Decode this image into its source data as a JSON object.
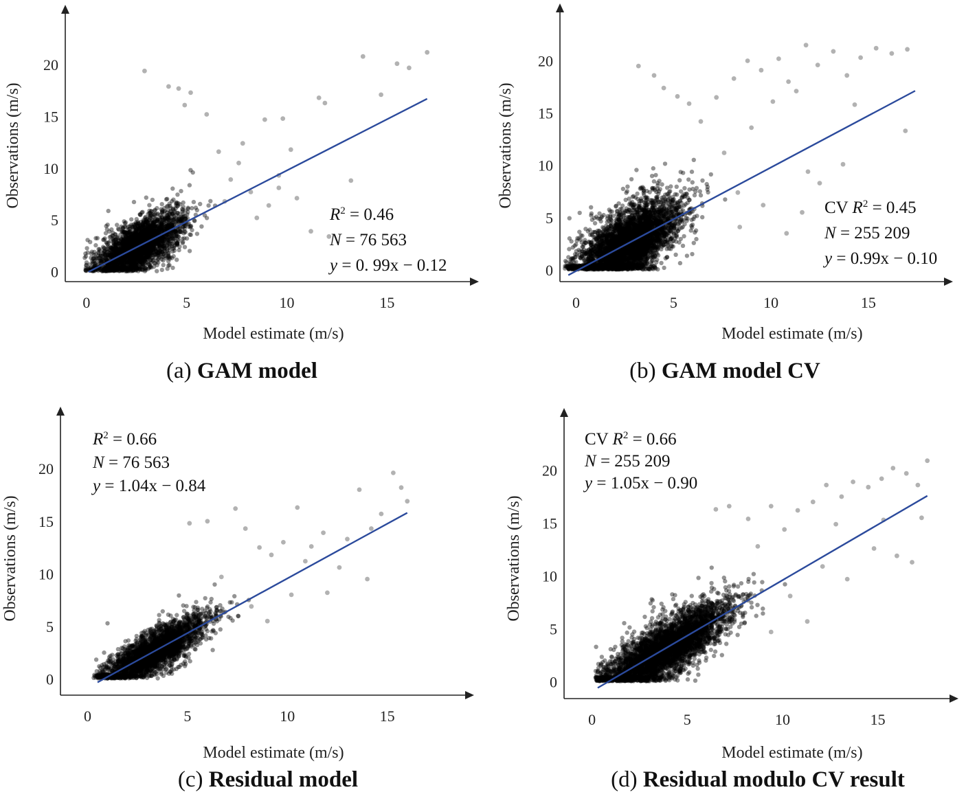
{
  "chart_data": [
    {
      "type": "scatter",
      "caption_letter": "(a)",
      "caption_title": "GAM model",
      "xlabel": "Model estimate (m/s)",
      "ylabel": "Observations (m/s)",
      "xlim": [
        -0.2,
        19
      ],
      "ylim": [
        -0.3,
        24
      ],
      "xticks": [
        0,
        5,
        10,
        15
      ],
      "yticks": [
        0,
        5,
        10,
        15,
        20
      ],
      "stats": {
        "r2_prefix": "",
        "r2_value": "= 0.46",
        "n_value": "= 76 563",
        "eq_value": "= 0. 99x − 0.12"
      },
      "fit": {
        "slope": 0.99,
        "intercept": -0.12,
        "x": [
          0.1,
          17
        ]
      },
      "cloud": {
        "cx": 2.6,
        "cy": 2.4,
        "sx": 1.1,
        "sy": 1.8,
        "n": 2600,
        "seed": 11
      },
      "outliers": [
        [
          2.9,
          19.4
        ],
        [
          4.1,
          17.9
        ],
        [
          4.6,
          17.7
        ],
        [
          5.2,
          17.3
        ],
        [
          4.9,
          16.1
        ],
        [
          6.0,
          15.2
        ],
        [
          6.6,
          11.6
        ],
        [
          7.8,
          12.4
        ],
        [
          8.9,
          14.7
        ],
        [
          9.8,
          14.8
        ],
        [
          9.6,
          9.3
        ],
        [
          10.2,
          11.8
        ],
        [
          11.6,
          16.8
        ],
        [
          11.9,
          16.3
        ],
        [
          11.2,
          3.9
        ],
        [
          12.1,
          3.4
        ],
        [
          13.2,
          8.8
        ],
        [
          13.8,
          20.8
        ],
        [
          14.7,
          17.1
        ],
        [
          15.5,
          20.1
        ],
        [
          16.1,
          19.7
        ],
        [
          17.0,
          21.2
        ],
        [
          7.2,
          8.9
        ],
        [
          8.2,
          7.7
        ],
        [
          9.1,
          6.4
        ],
        [
          10.5,
          7.1
        ],
        [
          7.6,
          10.5
        ],
        [
          8.5,
          5.2
        ],
        [
          6.9,
          6.8
        ],
        [
          9.6,
          8.1
        ]
      ]
    },
    {
      "type": "scatter",
      "caption_letter": "(b)",
      "caption_title": "GAM model CV",
      "xlabel": "Model estimate (m/s)",
      "ylabel": "Observations (m/s)",
      "xlim": [
        -0.9,
        19.2
      ],
      "ylim": [
        -0.2,
        24.5
      ],
      "xticks": [
        0,
        5,
        10,
        15
      ],
      "yticks": [
        0,
        5,
        10,
        15,
        20
      ],
      "stats": {
        "r2_prefix": "CV ",
        "r2_value": "= 0.45",
        "n_value": "= 255 209",
        "eq_value": "= 0.99x − 0.10"
      },
      "fit": {
        "slope": 0.99,
        "intercept": -0.1,
        "x": [
          -0.4,
          17.4
        ]
      },
      "cloud": {
        "cx": 2.7,
        "cy": 2.9,
        "sx": 1.3,
        "sy": 2.4,
        "n": 3800,
        "seed": 23
      },
      "outliers": [
        [
          3.2,
          19.5
        ],
        [
          4.0,
          18.6
        ],
        [
          4.5,
          17.4
        ],
        [
          5.2,
          16.6
        ],
        [
          5.8,
          15.9
        ],
        [
          6.4,
          14.2
        ],
        [
          7.2,
          16.5
        ],
        [
          8.1,
          18.3
        ],
        [
          8.8,
          20.0
        ],
        [
          9.5,
          19.1
        ],
        [
          10.4,
          20.2
        ],
        [
          10.9,
          18.0
        ],
        [
          11.3,
          17.1
        ],
        [
          11.8,
          21.5
        ],
        [
          12.4,
          19.6
        ],
        [
          13.2,
          20.9
        ],
        [
          13.9,
          18.6
        ],
        [
          14.6,
          20.3
        ],
        [
          15.4,
          21.2
        ],
        [
          16.2,
          20.7
        ],
        [
          17.0,
          21.1
        ],
        [
          16.9,
          13.3
        ],
        [
          13.7,
          10.1
        ],
        [
          12.5,
          8.3
        ],
        [
          11.6,
          5.5
        ],
        [
          10.8,
          3.5
        ],
        [
          9.6,
          6.2
        ],
        [
          8.3,
          7.4
        ],
        [
          7.6,
          11.2
        ],
        [
          9.0,
          13.6
        ],
        [
          11.9,
          9.4
        ],
        [
          14.3,
          15.8
        ],
        [
          10.1,
          16.1
        ],
        [
          8.4,
          4.1
        ]
      ]
    },
    {
      "type": "scatter",
      "caption_letter": "(c)",
      "caption_title": "Residual model",
      "xlabel": "Model estimate (m/s)",
      "ylabel": "Observations (m/s)",
      "xlim": [
        -0.6,
        19
      ],
      "ylim": [
        -0.3,
        24
      ],
      "xticks": [
        0,
        5,
        10,
        15
      ],
      "yticks": [
        0,
        5,
        10,
        15,
        20
      ],
      "stats": {
        "r2_prefix": "",
        "r2_value": "= 0.66",
        "n_value": "= 76 563",
        "eq_value": "= 1.04x − 0.84"
      },
      "fit": {
        "slope": 1.04,
        "intercept": -0.84,
        "x": [
          0.5,
          16
        ]
      },
      "cloud": {
        "cx": 3.3,
        "cy": 2.6,
        "sx": 1.3,
        "sy": 1.4,
        "n": 2700,
        "seed": 37
      },
      "outliers": [
        [
          5.1,
          14.8
        ],
        [
          6.0,
          15.0
        ],
        [
          7.4,
          16.2
        ],
        [
          7.9,
          14.3
        ],
        [
          8.6,
          12.5
        ],
        [
          9.2,
          11.8
        ],
        [
          9.8,
          13.0
        ],
        [
          10.5,
          16.3
        ],
        [
          11.2,
          12.6
        ],
        [
          12.0,
          8.2
        ],
        [
          12.6,
          10.6
        ],
        [
          13.0,
          13.3
        ],
        [
          13.6,
          18.0
        ],
        [
          14.2,
          14.3
        ],
        [
          14.7,
          15.7
        ],
        [
          15.3,
          19.6
        ],
        [
          15.7,
          18.2
        ],
        [
          16.0,
          16.9
        ],
        [
          14.0,
          9.5
        ],
        [
          11.8,
          13.9
        ],
        [
          8.2,
          6.9
        ],
        [
          9.0,
          5.5
        ],
        [
          10.2,
          8.0
        ],
        [
          6.7,
          9.7
        ],
        [
          10.9,
          11.2
        ]
      ]
    },
    {
      "type": "scatter",
      "caption_letter": "(d)",
      "caption_title": "Residual modulo CV result",
      "xlabel": "Model estimate (m/s)",
      "ylabel": "Observations (m/s)",
      "xlim": [
        -0.6,
        18.8
      ],
      "ylim": [
        -0.3,
        24
      ],
      "xticks": [
        0,
        5,
        10,
        15
      ],
      "yticks": [
        0,
        5,
        10,
        15,
        20
      ],
      "stats": {
        "r2_prefix": "CV ",
        "r2_value": "= 0.66",
        "n_value": "= 255 209",
        "eq_value": "= 1.05x − 0.90"
      },
      "fit": {
        "slope": 1.05,
        "intercept": -0.9,
        "x": [
          0.3,
          17.6
        ]
      },
      "cloud": {
        "cx": 3.8,
        "cy": 3.2,
        "sx": 1.7,
        "sy": 1.9,
        "n": 3900,
        "seed": 53
      },
      "outliers": [
        [
          6.5,
          16.3
        ],
        [
          7.2,
          16.6
        ],
        [
          8.2,
          15.4
        ],
        [
          9.4,
          16.6
        ],
        [
          10.1,
          14.4
        ],
        [
          10.8,
          16.2
        ],
        [
          11.6,
          17.0
        ],
        [
          12.3,
          18.6
        ],
        [
          13.1,
          17.5
        ],
        [
          13.7,
          18.9
        ],
        [
          14.5,
          18.4
        ],
        [
          15.2,
          19.2
        ],
        [
          15.8,
          20.2
        ],
        [
          16.5,
          19.7
        ],
        [
          17.1,
          18.6
        ],
        [
          17.6,
          20.9
        ],
        [
          17.3,
          15.5
        ],
        [
          16.0,
          11.9
        ],
        [
          16.8,
          11.3
        ],
        [
          14.8,
          12.6
        ],
        [
          13.4,
          9.7
        ],
        [
          12.1,
          10.9
        ],
        [
          11.3,
          5.7
        ],
        [
          10.4,
          8.1
        ],
        [
          9.4,
          4.7
        ],
        [
          15.3,
          15.3
        ],
        [
          8.7,
          12.8
        ],
        [
          12.8,
          14.9
        ]
      ]
    }
  ]
}
